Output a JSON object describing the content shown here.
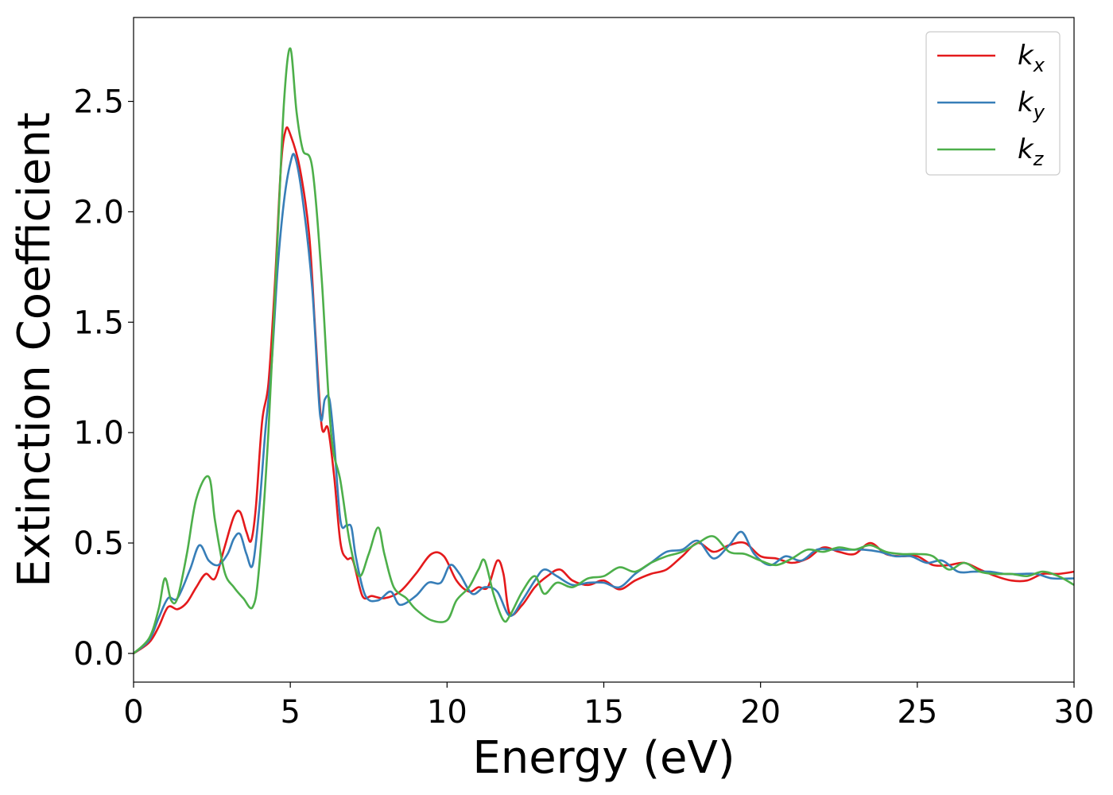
{
  "chart_data": {
    "type": "line",
    "title": "",
    "xlabel": "Energy (eV)",
    "ylabel": "Extinction Coefficient",
    "xlim": [
      0,
      30
    ],
    "ylim": [
      -0.13,
      2.88
    ],
    "xticks": [
      0,
      5,
      10,
      15,
      20,
      25,
      30
    ],
    "xtick_labels": [
      "0",
      "5",
      "10",
      "15",
      "20",
      "25",
      "30"
    ],
    "yticks": [
      0.0,
      0.5,
      1.0,
      1.5,
      2.0,
      2.5
    ],
    "ytick_labels": [
      "0.0",
      "0.5",
      "1.0",
      "1.5",
      "2.0",
      "2.5"
    ],
    "grid": false,
    "legend_position": "top-right",
    "series": [
      {
        "name": "k_x",
        "label_main": "k",
        "label_sub": "x",
        "color": "#e41a1c",
        "x": [
          0,
          0.5,
          0.8,
          1.1,
          1.4,
          1.7,
          2.0,
          2.3,
          2.6,
          2.9,
          3.2,
          3.4,
          3.6,
          3.75,
          3.9,
          4.1,
          4.3,
          4.5,
          4.7,
          4.85,
          5.0,
          5.3,
          5.6,
          5.8,
          6.0,
          6.2,
          6.4,
          6.6,
          6.8,
          7.0,
          7.3,
          7.6,
          8.0,
          8.5,
          9.0,
          9.5,
          9.9,
          10.3,
          10.7,
          11.0,
          11.3,
          11.6,
          11.8,
          12.0,
          12.4,
          12.8,
          13.2,
          13.6,
          14.0,
          14.5,
          15.0,
          15.5,
          16.0,
          16.5,
          17.0,
          17.5,
          18.0,
          18.5,
          19.0,
          19.5,
          20.0,
          20.5,
          21.0,
          21.5,
          22.0,
          22.5,
          23.0,
          23.5,
          24.0,
          24.5,
          25.0,
          25.5,
          26.0,
          26.5,
          27.0,
          27.5,
          28.0,
          28.5,
          29.0,
          29.5,
          30.0
        ],
        "y": [
          0.0,
          0.05,
          0.12,
          0.21,
          0.2,
          0.23,
          0.3,
          0.36,
          0.34,
          0.48,
          0.62,
          0.64,
          0.55,
          0.51,
          0.66,
          1.05,
          1.22,
          1.65,
          2.2,
          2.37,
          2.35,
          2.2,
          1.9,
          1.45,
          1.03,
          1.02,
          0.8,
          0.5,
          0.43,
          0.42,
          0.26,
          0.26,
          0.25,
          0.28,
          0.36,
          0.45,
          0.44,
          0.33,
          0.28,
          0.3,
          0.3,
          0.42,
          0.36,
          0.18,
          0.22,
          0.3,
          0.35,
          0.38,
          0.33,
          0.31,
          0.33,
          0.29,
          0.33,
          0.36,
          0.38,
          0.44,
          0.5,
          0.46,
          0.49,
          0.5,
          0.44,
          0.43,
          0.41,
          0.43,
          0.48,
          0.46,
          0.45,
          0.5,
          0.45,
          0.44,
          0.44,
          0.4,
          0.4,
          0.41,
          0.38,
          0.35,
          0.33,
          0.33,
          0.36,
          0.36,
          0.37
        ]
      },
      {
        "name": "k_y",
        "label_main": "k",
        "label_sub": "y",
        "color": "#377eb8",
        "x": [
          0,
          0.5,
          0.8,
          1.1,
          1.4,
          1.8,
          2.1,
          2.4,
          2.7,
          3.0,
          3.2,
          3.4,
          3.6,
          3.8,
          4.0,
          4.2,
          4.4,
          4.6,
          4.8,
          5.0,
          5.15,
          5.4,
          5.7,
          5.95,
          6.1,
          6.25,
          6.4,
          6.6,
          6.8,
          6.95,
          7.1,
          7.4,
          7.8,
          8.2,
          8.5,
          9.0,
          9.4,
          9.8,
          10.1,
          10.4,
          10.8,
          11.2,
          11.6,
          12.0,
          12.4,
          12.8,
          13.1,
          13.5,
          14.0,
          14.5,
          15.0,
          15.5,
          16.0,
          16.5,
          17.0,
          17.5,
          18.0,
          18.5,
          19.0,
          19.4,
          19.8,
          20.3,
          20.8,
          21.3,
          21.8,
          22.3,
          22.8,
          23.3,
          23.8,
          24.3,
          24.8,
          25.3,
          25.8,
          26.3,
          26.8,
          27.3,
          27.8,
          28.3,
          28.8,
          29.3,
          30.0
        ],
        "y": [
          0.0,
          0.06,
          0.16,
          0.25,
          0.25,
          0.38,
          0.49,
          0.42,
          0.4,
          0.45,
          0.52,
          0.54,
          0.45,
          0.4,
          0.64,
          1.0,
          1.3,
          1.75,
          2.05,
          2.22,
          2.25,
          2.05,
          1.65,
          1.08,
          1.15,
          1.15,
          0.95,
          0.6,
          0.58,
          0.57,
          0.43,
          0.26,
          0.24,
          0.28,
          0.22,
          0.26,
          0.32,
          0.32,
          0.4,
          0.36,
          0.27,
          0.3,
          0.28,
          0.17,
          0.24,
          0.33,
          0.38,
          0.35,
          0.31,
          0.32,
          0.32,
          0.3,
          0.36,
          0.41,
          0.46,
          0.47,
          0.51,
          0.43,
          0.49,
          0.55,
          0.45,
          0.4,
          0.44,
          0.42,
          0.47,
          0.47,
          0.47,
          0.47,
          0.46,
          0.44,
          0.44,
          0.41,
          0.42,
          0.37,
          0.37,
          0.37,
          0.36,
          0.36,
          0.36,
          0.34,
          0.34
        ]
      },
      {
        "name": "k_z",
        "label_main": "k",
        "label_sub": "z",
        "color": "#4daf4a",
        "x": [
          0,
          0.5,
          0.8,
          1.0,
          1.2,
          1.4,
          1.7,
          2.0,
          2.4,
          2.6,
          2.9,
          3.2,
          3.5,
          3.8,
          4.0,
          4.3,
          4.6,
          4.8,
          5.0,
          5.2,
          5.4,
          5.7,
          6.0,
          6.3,
          6.6,
          6.9,
          7.2,
          7.5,
          7.8,
          8.0,
          8.3,
          8.7,
          9.0,
          9.5,
          10.0,
          10.3,
          10.7,
          11.0,
          11.2,
          11.5,
          11.8,
          12.0,
          12.4,
          12.8,
          13.1,
          13.5,
          14.0,
          14.5,
          15.0,
          15.5,
          16.0,
          16.5,
          17.0,
          17.5,
          18.0,
          18.5,
          19.0,
          19.5,
          20.0,
          20.5,
          21.0,
          21.5,
          22.0,
          22.5,
          23.0,
          23.5,
          24.0,
          24.5,
          25.0,
          25.5,
          26.0,
          26.5,
          27.0,
          27.5,
          28.0,
          28.5,
          29.0,
          29.5,
          30.0
        ],
        "y": [
          0.0,
          0.07,
          0.2,
          0.34,
          0.24,
          0.25,
          0.45,
          0.7,
          0.8,
          0.6,
          0.37,
          0.3,
          0.25,
          0.21,
          0.38,
          1.0,
          1.9,
          2.5,
          2.74,
          2.45,
          2.28,
          2.2,
          1.7,
          1.0,
          0.78,
          0.5,
          0.35,
          0.45,
          0.57,
          0.45,
          0.3,
          0.25,
          0.2,
          0.15,
          0.15,
          0.24,
          0.3,
          0.38,
          0.42,
          0.26,
          0.15,
          0.17,
          0.28,
          0.35,
          0.27,
          0.32,
          0.3,
          0.34,
          0.35,
          0.39,
          0.37,
          0.41,
          0.44,
          0.46,
          0.5,
          0.53,
          0.46,
          0.45,
          0.42,
          0.4,
          0.43,
          0.47,
          0.46,
          0.48,
          0.47,
          0.49,
          0.46,
          0.45,
          0.45,
          0.44,
          0.38,
          0.41,
          0.37,
          0.36,
          0.36,
          0.35,
          0.37,
          0.35,
          0.31
        ]
      }
    ]
  }
}
